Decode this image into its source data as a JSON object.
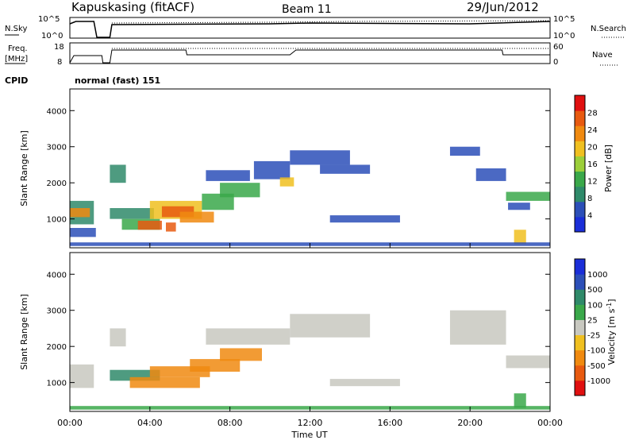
{
  "header": {
    "station": "Kapuskasing (fitACF)",
    "beam": "Beam 11",
    "date": "29/Jun/2012"
  },
  "noise_panel": {
    "left_label": "N.Sky",
    "right_label": "N.Search",
    "left_ticks": [
      "10^5",
      "10^0"
    ],
    "right_ticks": [
      "10^5",
      "10^0"
    ]
  },
  "freq_panel": {
    "left_label_1": "Freq.",
    "left_label_2": "[MHz]",
    "right_label": "Nave",
    "left_ticks": [
      "18",
      "8"
    ],
    "right_ticks": [
      "60",
      "0"
    ]
  },
  "cpid": {
    "label": "CPID",
    "value": "normal (fast) 151"
  },
  "time_axis": {
    "ticks": [
      "00:00",
      "04:00",
      "08:00",
      "12:00",
      "16:00",
      "20:00",
      "00:00"
    ],
    "xlabel": "Time UT"
  },
  "colors": {
    "power_scale": [
      "#1a2ed8",
      "#2c4fb8",
      "#2f8a6a",
      "#3aa84a",
      "#9ccf3a",
      "#f0c020",
      "#f08a10",
      "#e85a10",
      "#e01010"
    ],
    "velocity_scale": [
      "#1a2ed8",
      "#2c4fb8",
      "#2f8a6a",
      "#3aa84a",
      "#c8c8c0",
      "#f0c020",
      "#f08a10",
      "#e85a10",
      "#e01010"
    ],
    "ground_scatter": "#c8c8c0"
  },
  "chart_data": [
    {
      "type": "heatmap",
      "name": "power",
      "ylabel": "Slant Range [km]",
      "yticks": [
        "1000",
        "2000",
        "3000",
        "4000"
      ],
      "ylim": [
        200,
        4600
      ],
      "xlim": [
        0,
        24
      ],
      "colorbar_label": "Power [dB]",
      "colorbar_ticks": [
        "4",
        "8",
        "12",
        "16",
        "20",
        "24",
        "28"
      ],
      "colorbar_range": [
        0,
        32
      ],
      "cells": [
        {
          "t0": 0.0,
          "t1": 1.2,
          "r0": 850,
          "r1": 1500,
          "v": 10
        },
        {
          "t0": 0.0,
          "t1": 1.0,
          "r0": 1050,
          "r1": 1300,
          "v": 22
        },
        {
          "t0": 0.0,
          "t1": 1.3,
          "r0": 500,
          "r1": 750,
          "v": 6
        },
        {
          "t0": 2.0,
          "t1": 2.8,
          "r0": 2000,
          "r1": 2500,
          "v": 8
        },
        {
          "t0": 2.0,
          "t1": 4.2,
          "r0": 1000,
          "r1": 1300,
          "v": 8
        },
        {
          "t0": 2.6,
          "t1": 4.5,
          "r0": 700,
          "r1": 1000,
          "v": 14
        },
        {
          "t0": 3.4,
          "t1": 4.6,
          "r0": 700,
          "r1": 950,
          "v": 26
        },
        {
          "t0": 4.0,
          "t1": 6.6,
          "r0": 1000,
          "r1": 1500,
          "v": 18
        },
        {
          "t0": 4.6,
          "t1": 6.2,
          "r0": 1050,
          "r1": 1350,
          "v": 28
        },
        {
          "t0": 5.5,
          "t1": 7.2,
          "r0": 900,
          "r1": 1200,
          "v": 24
        },
        {
          "t0": 6.6,
          "t1": 8.2,
          "r0": 1250,
          "r1": 1700,
          "v": 14
        },
        {
          "t0": 7.5,
          "t1": 9.5,
          "r0": 1600,
          "r1": 2000,
          "v": 12
        },
        {
          "t0": 4.8,
          "t1": 5.3,
          "r0": 650,
          "r1": 900,
          "v": 28
        },
        {
          "t0": 6.8,
          "t1": 9.0,
          "r0": 2050,
          "r1": 2350,
          "v": 6
        },
        {
          "t0": 9.2,
          "t1": 11.0,
          "r0": 2100,
          "r1": 2600,
          "v": 6
        },
        {
          "t0": 10.5,
          "t1": 11.2,
          "r0": 1900,
          "r1": 2150,
          "v": 18
        },
        {
          "t0": 11.0,
          "t1": 14.0,
          "r0": 2500,
          "r1": 2900,
          "v": 5
        },
        {
          "t0": 12.5,
          "t1": 15.0,
          "r0": 2250,
          "r1": 2500,
          "v": 5
        },
        {
          "t0": 13.0,
          "t1": 16.5,
          "r0": 900,
          "r1": 1100,
          "v": 5
        },
        {
          "t0": 19.0,
          "t1": 20.5,
          "r0": 2750,
          "r1": 3000,
          "v": 5
        },
        {
          "t0": 20.3,
          "t1": 21.8,
          "r0": 2050,
          "r1": 2400,
          "v": 5
        },
        {
          "t0": 21.8,
          "t1": 24.0,
          "r0": 1500,
          "r1": 1750,
          "v": 14
        },
        {
          "t0": 21.9,
          "t1": 23.0,
          "r0": 1250,
          "r1": 1450,
          "v": 6
        },
        {
          "t0": 22.2,
          "t1": 22.8,
          "r0": 300,
          "r1": 700,
          "v": 20
        },
        {
          "t0": 0.0,
          "t1": 24.0,
          "r0": 250,
          "r1": 350,
          "v": 4
        }
      ]
    },
    {
      "type": "heatmap",
      "name": "velocity",
      "ylabel": "Slant Range [km]",
      "yticks": [
        "1000",
        "2000",
        "3000",
        "4000"
      ],
      "ylim": [
        200,
        4600
      ],
      "xlim": [
        0,
        24
      ],
      "colorbar_label": "Velocity [m s^-1]",
      "colorbar_ticks": [
        "1000",
        "500",
        "100",
        "25",
        "-25",
        "-100",
        "-500",
        "-1000"
      ],
      "cells": [
        {
          "t0": 0.0,
          "t1": 1.2,
          "r0": 850,
          "r1": 1500,
          "v": 0,
          "gs": true
        },
        {
          "t0": 2.0,
          "t1": 2.8,
          "r0": 2000,
          "r1": 2500,
          "v": 0,
          "gs": true
        },
        {
          "t0": 2.0,
          "t1": 4.5,
          "r0": 1050,
          "r1": 1350,
          "v": 150
        },
        {
          "t0": 3.0,
          "t1": 6.5,
          "r0": 850,
          "r1": 1150,
          "v": -400
        },
        {
          "t0": 4.0,
          "t1": 7.0,
          "r0": 1150,
          "r1": 1450,
          "v": -300
        },
        {
          "t0": 6.0,
          "t1": 8.5,
          "r0": 1300,
          "r1": 1650,
          "v": -200
        },
        {
          "t0": 7.5,
          "t1": 9.6,
          "r0": 1600,
          "r1": 1950,
          "v": -150
        },
        {
          "t0": 6.8,
          "t1": 11.0,
          "r0": 2050,
          "r1": 2500,
          "v": 0,
          "gs": true
        },
        {
          "t0": 11.0,
          "t1": 15.0,
          "r0": 2250,
          "r1": 2900,
          "v": 0,
          "gs": true
        },
        {
          "t0": 13.0,
          "t1": 16.5,
          "r0": 900,
          "r1": 1100,
          "v": 0,
          "gs": true
        },
        {
          "t0": 19.0,
          "t1": 21.8,
          "r0": 2050,
          "r1": 3000,
          "v": 0,
          "gs": true
        },
        {
          "t0": 21.8,
          "t1": 24.0,
          "r0": 1400,
          "r1": 1750,
          "v": 0,
          "gs": true
        },
        {
          "t0": 22.2,
          "t1": 22.8,
          "r0": 300,
          "r1": 700,
          "v": 60
        },
        {
          "t0": 0.0,
          "t1": 24.0,
          "r0": 250,
          "r1": 350,
          "v": 40
        }
      ]
    }
  ]
}
